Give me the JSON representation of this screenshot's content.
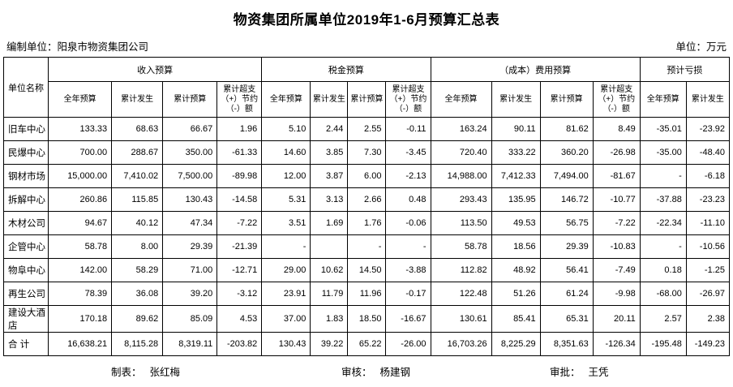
{
  "title": "物资集团所属单位2019年1-6月预算汇总表",
  "meta": {
    "prepared_by_label": "编制单位：",
    "prepared_by": "阳泉市物资集团公司",
    "unit_label": "单位：",
    "unit": "万元"
  },
  "table": {
    "corner": "单位名称",
    "groups": [
      {
        "label": "收入预算"
      },
      {
        "label": "税金预算"
      },
      {
        "label": "（成本）费用预算"
      },
      {
        "label": "预计亏损"
      }
    ],
    "sub": {
      "annual": "全年预算",
      "cum_actual": "累计发生",
      "cum_budget": "累计预算",
      "over_save": "累计超支\n（+）节约\n（-）额"
    },
    "rows": [
      {
        "name": "旧车中心",
        "values": [
          "133.33",
          "68.63",
          "66.67",
          "1.96",
          "5.10",
          "2.44",
          "2.55",
          "-0.11",
          "163.24",
          "90.11",
          "81.62",
          "8.49",
          "-35.01",
          "-23.92"
        ]
      },
      {
        "name": "民爆中心",
        "values": [
          "700.00",
          "288.67",
          "350.00",
          "-61.33",
          "14.60",
          "3.85",
          "7.30",
          "-3.45",
          "720.40",
          "333.22",
          "360.20",
          "-26.98",
          "-35.00",
          "-48.40"
        ]
      },
      {
        "name": "钢材市场",
        "values": [
          "15,000.00",
          "7,410.02",
          "7,500.00",
          "-89.98",
          "12.00",
          "3.87",
          "6.00",
          "-2.13",
          "14,988.00",
          "7,412.33",
          "7,494.00",
          "-81.67",
          "-",
          "-6.18"
        ]
      },
      {
        "name": "拆解中心",
        "values": [
          "260.86",
          "115.85",
          "130.43",
          "-14.58",
          "5.31",
          "3.13",
          "2.66",
          "0.48",
          "293.43",
          "135.95",
          "146.72",
          "-10.77",
          "-37.88",
          "-23.23"
        ]
      },
      {
        "name": "木材公司",
        "values": [
          "94.67",
          "40.12",
          "47.34",
          "-7.22",
          "3.51",
          "1.69",
          "1.76",
          "-0.06",
          "113.50",
          "49.53",
          "56.75",
          "-7.22",
          "-22.34",
          "-11.10"
        ]
      },
      {
        "name": "企管中心",
        "values": [
          "58.78",
          "8.00",
          "29.39",
          "-21.39",
          "-",
          "",
          "-",
          "-",
          "58.78",
          "18.56",
          "29.39",
          "-10.83",
          "-",
          "-10.56"
        ]
      },
      {
        "name": "物阜中心",
        "values": [
          "142.00",
          "58.29",
          "71.00",
          "-12.71",
          "29.00",
          "10.62",
          "14.50",
          "-3.88",
          "112.82",
          "48.92",
          "56.41",
          "-7.49",
          "0.18",
          "-1.25"
        ]
      },
      {
        "name": "再生公司",
        "values": [
          "78.39",
          "36.08",
          "39.20",
          "-3.12",
          "23.91",
          "11.79",
          "11.96",
          "-0.17",
          "122.48",
          "51.26",
          "61.24",
          "-9.98",
          "-68.00",
          "-26.97"
        ]
      },
      {
        "name": "建设大酒店",
        "values": [
          "170.18",
          "89.62",
          "85.09",
          "4.53",
          "37.00",
          "1.83",
          "18.50",
          "-16.67",
          "130.61",
          "85.41",
          "65.31",
          "20.11",
          "2.57",
          "2.38"
        ]
      }
    ],
    "total": {
      "name": "合  计",
      "values": [
        "16,638.21",
        "8,115.28",
        "8,319.11",
        "-203.82",
        "130.43",
        "39.22",
        "65.22",
        "-26.00",
        "16,703.26",
        "8,225.29",
        "8,351.63",
        "-126.34",
        "-195.48",
        "-149.23"
      ]
    }
  },
  "footer": {
    "maker_label": "制表：",
    "maker": "张红梅",
    "reviewer_label": "审核：",
    "reviewer": "杨建钢",
    "approver_label": "审批：",
    "approver": "王凭"
  }
}
